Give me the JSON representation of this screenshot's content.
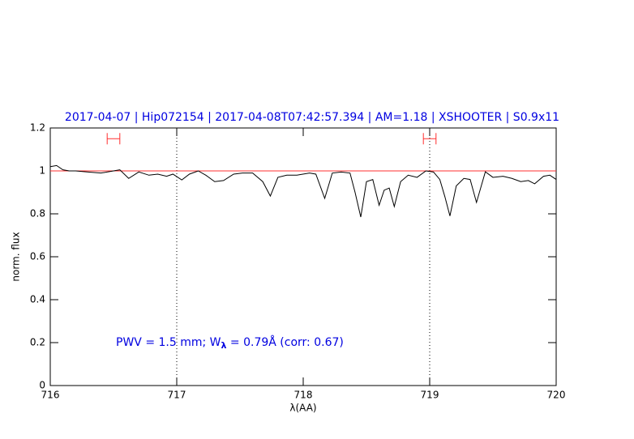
{
  "chart_data": {
    "type": "line",
    "title": "2017-04-07 | Hip072154 | 2017-04-08T07:42:57.394 | AM=1.18 | XSHOOTER | S0.9x11",
    "xlabel": "λ(AA)",
    "ylabel": "norm. flux",
    "annotation": {
      "prefix": "PWV = 1.5 mm; W",
      "subscript": "λ",
      "suffix": " = 0.79Å (corr: 0.67)"
    },
    "x": [
      716.0,
      716.05,
      716.1,
      716.15,
      716.2,
      716.3,
      716.4,
      716.5,
      716.55,
      716.62,
      716.7,
      716.78,
      716.85,
      716.92,
      716.97,
      717.04,
      717.1,
      717.17,
      717.23,
      717.3,
      717.37,
      717.45,
      717.52,
      717.6,
      717.68,
      717.74,
      717.8,
      717.87,
      717.95,
      718.05,
      718.1,
      718.17,
      718.23,
      718.3,
      718.37,
      718.41,
      718.455,
      718.5,
      718.55,
      718.6,
      718.64,
      718.68,
      718.72,
      718.77,
      718.83,
      718.9,
      718.97,
      719.03,
      719.08,
      719.12,
      719.16,
      719.21,
      719.27,
      719.32,
      719.37,
      719.44,
      719.5,
      719.58,
      719.65,
      719.72,
      719.78,
      719.83,
      719.9,
      719.95,
      720.0
    ],
    "values": [
      1.02,
      1.025,
      1.005,
      1.0,
      1.0,
      0.995,
      0.99,
      1.0,
      1.005,
      0.965,
      0.995,
      0.98,
      0.985,
      0.975,
      0.985,
      0.958,
      0.985,
      1.0,
      0.98,
      0.95,
      0.955,
      0.985,
      0.99,
      0.99,
      0.95,
      0.883,
      0.97,
      0.98,
      0.98,
      0.99,
      0.985,
      0.872,
      0.99,
      0.995,
      0.99,
      0.9,
      0.785,
      0.95,
      0.96,
      0.84,
      0.91,
      0.92,
      0.834,
      0.95,
      0.98,
      0.97,
      1.0,
      0.995,
      0.96,
      0.88,
      0.79,
      0.93,
      0.965,
      0.96,
      0.853,
      0.996,
      0.97,
      0.975,
      0.965,
      0.95,
      0.955,
      0.94,
      0.975,
      0.98,
      0.96
    ],
    "color": "#000000",
    "reference_line": {
      "y": 1,
      "color": "#ff3030"
    },
    "vlines": [
      717,
      719
    ],
    "ranges": {
      "y": 1.15,
      "color": "#ff3030",
      "intervals": [
        [
          716.45,
          716.55
        ],
        [
          718.95,
          719.05
        ]
      ]
    },
    "xlim": [
      716,
      720
    ],
    "xticks": [
      716,
      717,
      718,
      719,
      720
    ],
    "ylim": [
      0,
      1.2
    ],
    "yticks": [
      0,
      0.2,
      0.4,
      0.6,
      0.8,
      1,
      1.2
    ]
  }
}
